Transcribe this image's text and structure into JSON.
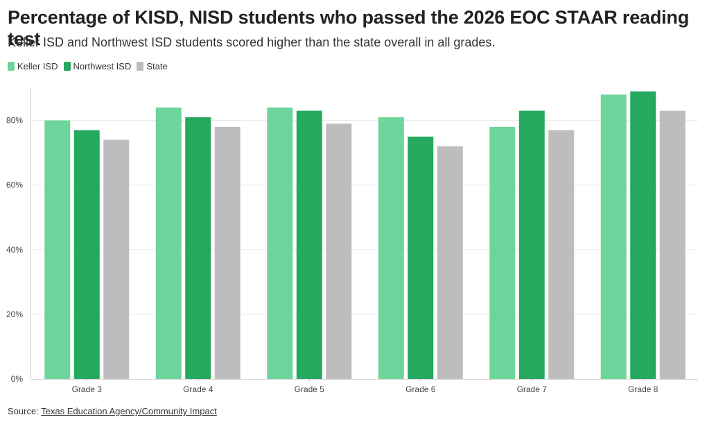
{
  "header": {
    "title": "Percentage of KISD, NISD students who passed the 2026 EOC STAAR reading test",
    "subtitle": "Keller ISD and Northwest ISD students scored higher than the state overall in all grades."
  },
  "source": {
    "prefix": "Source: ",
    "link_text": "Texas Education Agency/Community Impact"
  },
  "colors": {
    "keller": "#6dd59b",
    "northwest": "#25a95e",
    "state": "#bdbdbd",
    "grid": "#ececec",
    "axis": "#cccccc"
  },
  "chart_data": {
    "type": "bar",
    "title": "Percentage of KISD, NISD students who passed the 2026 EOC STAAR reading test",
    "subtitle": "Keller ISD and Northwest ISD students scored higher than the state overall in all grades.",
    "xlabel": "",
    "ylabel": "",
    "categories": [
      "Grade 3",
      "Grade 4",
      "Grade 5",
      "Grade 6",
      "Grade 7",
      "Grade 8"
    ],
    "series": [
      {
        "name": "Keller ISD",
        "color": "#6dd59b",
        "values": [
          80,
          84,
          84,
          81,
          78,
          88
        ]
      },
      {
        "name": "Northwest ISD",
        "color": "#25a95e",
        "values": [
          77,
          81,
          83,
          75,
          83,
          89
        ]
      },
      {
        "name": "State",
        "color": "#bdbdbd",
        "values": [
          74,
          78,
          79,
          72,
          77,
          83
        ]
      }
    ],
    "ylim": [
      0,
      90
    ],
    "y_ticks": [
      0,
      20,
      40,
      60,
      80
    ],
    "y_tick_labels": [
      "0%",
      "20%",
      "40%",
      "60%",
      "80%"
    ],
    "grid": true,
    "legend_position": "top-left"
  }
}
